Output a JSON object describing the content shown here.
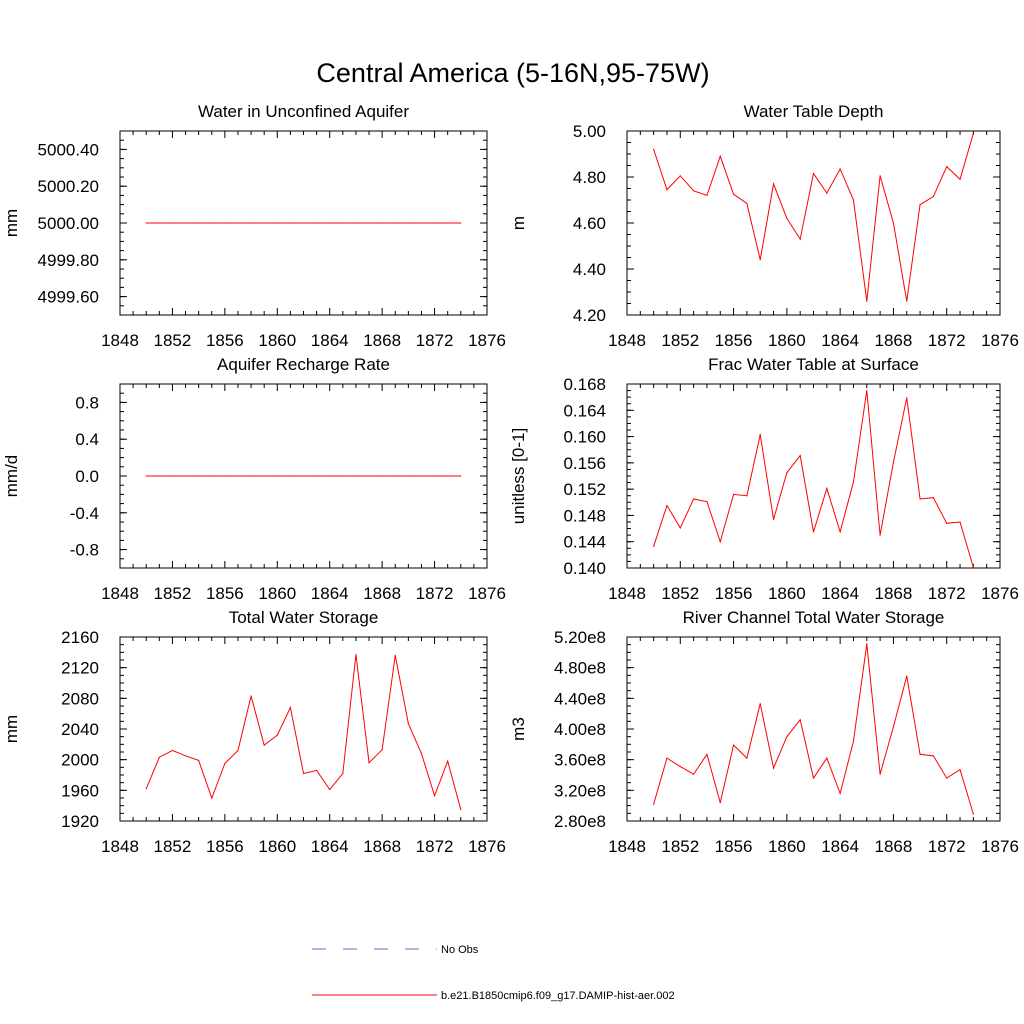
{
  "page": {
    "title": "Central America (5-16N,95-75W)"
  },
  "legend": {
    "obs_label": "No Obs",
    "obs_color": "#6666cc",
    "model_label": "b.e21.B1850cmip6.f09_g17.DAMIP-hist-aer.002",
    "model_color": "#ff0000"
  },
  "chart_data": [
    {
      "type": "line",
      "title": "Water in Unconfined Aquifer",
      "ylabel": "mm",
      "xlim": [
        1848,
        1876
      ],
      "ylim": [
        4999.5,
        5000.5
      ],
      "xticks": [
        1848,
        1852,
        1856,
        1860,
        1864,
        1868,
        1872,
        1876
      ],
      "yticks": [
        4999.6,
        4999.8,
        5000.0,
        5000.2,
        5000.4
      ],
      "ytick_labels": [
        "4999.60",
        "4999.80",
        "5000.00",
        "5000.20",
        "5000.40"
      ],
      "x": [
        1850,
        1851,
        1852,
        1853,
        1854,
        1855,
        1856,
        1857,
        1858,
        1859,
        1860,
        1861,
        1862,
        1863,
        1864,
        1865,
        1866,
        1867,
        1868,
        1869,
        1870,
        1871,
        1872,
        1873,
        1874
      ],
      "values": [
        5000,
        5000,
        5000,
        5000,
        5000,
        5000,
        5000,
        5000,
        5000,
        5000,
        5000,
        5000,
        5000,
        5000,
        5000,
        5000,
        5000,
        5000,
        5000,
        5000,
        5000,
        5000,
        5000,
        5000,
        5000
      ]
    },
    {
      "type": "line",
      "title": "Water Table Depth",
      "ylabel": "m",
      "xlim": [
        1848,
        1876
      ],
      "ylim": [
        4.2,
        5.0
      ],
      "xticks": [
        1848,
        1852,
        1856,
        1860,
        1864,
        1868,
        1872,
        1876
      ],
      "yticks": [
        4.2,
        4.4,
        4.6,
        4.8,
        5.0
      ],
      "ytick_labels": [
        "4.20",
        "4.40",
        "4.60",
        "4.80",
        "5.00"
      ],
      "x": [
        1850,
        1851,
        1852,
        1853,
        1854,
        1855,
        1856,
        1857,
        1858,
        1859,
        1860,
        1861,
        1862,
        1863,
        1864,
        1865,
        1866,
        1867,
        1868,
        1869,
        1870,
        1871,
        1872,
        1873,
        1874
      ],
      "values": [
        4.92,
        4.745,
        4.805,
        4.74,
        4.72,
        4.89,
        4.725,
        4.685,
        4.44,
        4.77,
        4.62,
        4.53,
        4.815,
        4.73,
        4.835,
        4.7,
        4.26,
        4.805,
        4.6,
        4.26,
        4.68,
        4.715,
        4.845,
        4.79,
        4.99
      ]
    },
    {
      "type": "line",
      "title": "Aquifer Recharge Rate",
      "ylabel": "mm/d",
      "xlim": [
        1848,
        1876
      ],
      "ylim": [
        -1.0,
        1.0
      ],
      "xticks": [
        1848,
        1852,
        1856,
        1860,
        1864,
        1868,
        1872,
        1876
      ],
      "yticks": [
        -0.8,
        -0.4,
        0.0,
        0.4,
        0.8
      ],
      "ytick_labels": [
        "-0.8",
        "-0.4",
        "0.0",
        "0.4",
        "0.8"
      ],
      "x": [
        1850,
        1851,
        1852,
        1853,
        1854,
        1855,
        1856,
        1857,
        1858,
        1859,
        1860,
        1861,
        1862,
        1863,
        1864,
        1865,
        1866,
        1867,
        1868,
        1869,
        1870,
        1871,
        1872,
        1873,
        1874
      ],
      "values": [
        0,
        0,
        0,
        0,
        0,
        0,
        0,
        0,
        0,
        0,
        0,
        0,
        0,
        0,
        0,
        0,
        0,
        0,
        0,
        0,
        0,
        0,
        0,
        0,
        0
      ]
    },
    {
      "type": "line",
      "title": "Frac Water Table at Surface",
      "ylabel": "unitless [0-1]",
      "xlim": [
        1848,
        1876
      ],
      "ylim": [
        0.14,
        0.168
      ],
      "xticks": [
        1848,
        1852,
        1856,
        1860,
        1864,
        1868,
        1872,
        1876
      ],
      "yticks": [
        0.14,
        0.144,
        0.148,
        0.152,
        0.156,
        0.16,
        0.164,
        0.168
      ],
      "ytick_labels": [
        "0.140",
        "0.144",
        "0.148",
        "0.152",
        "0.156",
        "0.160",
        "0.164",
        "0.168"
      ],
      "x": [
        1850,
        1851,
        1852,
        1853,
        1854,
        1855,
        1856,
        1857,
        1858,
        1859,
        1860,
        1861,
        1862,
        1863,
        1864,
        1865,
        1866,
        1867,
        1868,
        1869,
        1870,
        1871,
        1872,
        1873,
        1874
      ],
      "values": [
        0.1433,
        0.1495,
        0.1461,
        0.1505,
        0.1501,
        0.144,
        0.1512,
        0.151,
        0.1603,
        0.1474,
        0.1545,
        0.1571,
        0.1455,
        0.1521,
        0.1455,
        0.1531,
        0.167,
        0.145,
        0.1561,
        0.1659,
        0.1505,
        0.1507,
        0.1468,
        0.147,
        0.1401
      ]
    },
    {
      "type": "line",
      "title": "Total Water Storage",
      "ylabel": "mm",
      "xlim": [
        1848,
        1876
      ],
      "ylim": [
        1920,
        2160
      ],
      "xticks": [
        1848,
        1852,
        1856,
        1860,
        1864,
        1868,
        1872,
        1876
      ],
      "yticks": [
        1920,
        1960,
        2000,
        2040,
        2080,
        2120,
        2160
      ],
      "ytick_labels": [
        "1920",
        "1960",
        "2000",
        "2040",
        "2080",
        "2120",
        "2160"
      ],
      "x": [
        1850,
        1851,
        1852,
        1853,
        1854,
        1855,
        1856,
        1857,
        1858,
        1859,
        1860,
        1861,
        1862,
        1863,
        1864,
        1865,
        1866,
        1867,
        1868,
        1869,
        1870,
        1871,
        1872,
        1873,
        1874
      ],
      "values": [
        1962,
        2003,
        2012,
        2005,
        1999,
        1950,
        1995,
        2012,
        2083,
        2019,
        2032,
        2068,
        1982,
        1986,
        1961,
        1982,
        2137,
        1996,
        2013,
        2136,
        2047,
        2008,
        1953,
        1998,
        1935
      ]
    },
    {
      "type": "line",
      "title": "River Channel Total Water Storage",
      "ylabel": "m3",
      "xlim": [
        1848,
        1876
      ],
      "ylim": [
        280000000.0,
        520000000.0
      ],
      "xticks": [
        1848,
        1852,
        1856,
        1860,
        1864,
        1868,
        1872,
        1876
      ],
      "yticks": [
        280000000.0,
        320000000.0,
        360000000.0,
        400000000.0,
        440000000.0,
        480000000.0,
        520000000.0
      ],
      "ytick_labels": [
        "2.80e8",
        "3.20e8",
        "3.60e8",
        "4.00e8",
        "4.40e8",
        "4.80e8",
        "5.20e8"
      ],
      "x": [
        1850,
        1851,
        1852,
        1853,
        1854,
        1855,
        1856,
        1857,
        1858,
        1859,
        1860,
        1861,
        1862,
        1863,
        1864,
        1865,
        1866,
        1867,
        1868,
        1869,
        1870,
        1871,
        1872,
        1873,
        1874
      ],
      "values": [
        302000000.0,
        362000000.0,
        351000000.0,
        341000000.0,
        367000000.0,
        304000000.0,
        379000000.0,
        362000000.0,
        433000000.0,
        349000000.0,
        390000000.0,
        412000000.0,
        336000000.0,
        362000000.0,
        316000000.0,
        384000000.0,
        511000000.0,
        341000000.0,
        403000000.0,
        469000000.0,
        367000000.0,
        365000000.0,
        336000000.0,
        347000000.0,
        289000000.0
      ]
    }
  ]
}
